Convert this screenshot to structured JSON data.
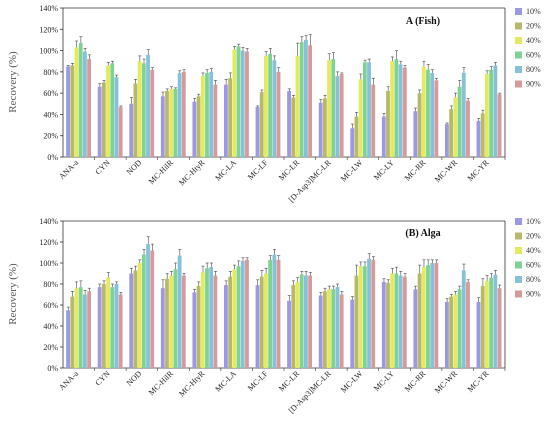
{
  "chart_data": [
    {
      "type": "bar",
      "title": "A (Fish)",
      "xlabel": "",
      "ylabel": "Recovery (%)",
      "ylim": [
        0,
        140
      ],
      "ytick_labels": [
        "0%",
        "20%",
        "40%",
        "60%",
        "80%",
        "100%",
        "120%",
        "140%"
      ],
      "grid": false,
      "legend_position": "right",
      "categories": [
        "ANA-a",
        "CYN",
        "NOD",
        "MC-HilR",
        "MC-HtyR",
        "MC-LA",
        "MC-LF",
        "MC-LR",
        "[D-Asp3]MC-LR",
        "MC-LW",
        "MC-LY",
        "MC-RR",
        "MC-WR",
        "MC-YR"
      ],
      "series": [
        {
          "name": "10%",
          "values": [
            85,
            66,
            50,
            57,
            52,
            68,
            47,
            62,
            51,
            27,
            38,
            43,
            31,
            34
          ]
        },
        {
          "name": "20%",
          "values": [
            86,
            70,
            69,
            62,
            57,
            74,
            61,
            56,
            55,
            38,
            62,
            60,
            45,
            41
          ]
        },
        {
          "name": "40%",
          "values": [
            103,
            86,
            90,
            64,
            76,
            101,
            95,
            95,
            91,
            73,
            90,
            85,
            56,
            78
          ]
        },
        {
          "name": "60%",
          "values": [
            107,
            88,
            88,
            64,
            79,
            104,
            97,
            108,
            92,
            89,
            92,
            82,
            66,
            82
          ]
        },
        {
          "name": "80%",
          "values": [
            99,
            75,
            96,
            79,
            80,
            100,
            91,
            110,
            76,
            89,
            87,
            79,
            79,
            86
          ]
        },
        {
          "name": "90%",
          "values": [
            92,
            47,
            82,
            80,
            68,
            99,
            80,
            105,
            78,
            68,
            84,
            72,
            53,
            59
          ]
        }
      ],
      "errors": [
        [
          1,
          3,
          6,
          4,
          3,
          5,
          1,
          2,
          3,
          4,
          3,
          3,
          1,
          2
        ],
        [
          2,
          2,
          4,
          2,
          2,
          5,
          2,
          2,
          3,
          4,
          4,
          3,
          3,
          3
        ],
        [
          6,
          3,
          5,
          2,
          3,
          3,
          4,
          12,
          6,
          5,
          4,
          5,
          4,
          3
        ],
        [
          6,
          2,
          4,
          1,
          3,
          2,
          5,
          5,
          6,
          2,
          8,
          5,
          6,
          3
        ],
        [
          3,
          2,
          5,
          2,
          3,
          3,
          4,
          4,
          4,
          3,
          3,
          3,
          5,
          3
        ],
        [
          4,
          1,
          2,
          2,
          4,
          3,
          4,
          10,
          1,
          6,
          2,
          2,
          2,
          1
        ]
      ]
    },
    {
      "type": "bar",
      "title": "(B) Alga",
      "xlabel": "",
      "ylabel": "Recovery (%)",
      "ylim": [
        0,
        140
      ],
      "ytick_labels": [
        "0%",
        "20%",
        "40%",
        "60%",
        "80%",
        "100%",
        "120%",
        "140%"
      ],
      "grid": false,
      "legend_position": "right",
      "categories": [
        "ANA-a",
        "CYN",
        "NOD",
        "MC-HilR",
        "MC-HtyR",
        "MC-LA",
        "MC-LF",
        "MC-LR",
        "[D-Asp3]MC-LR",
        "MC-LW",
        "MC-LY",
        "MC-RR",
        "MC-WR",
        "MC-YR"
      ],
      "series": [
        {
          "name": "10%",
          "values": [
            55,
            77,
            90,
            76,
            72,
            79,
            79,
            64,
            69,
            65,
            82,
            75,
            63,
            63
          ]
        },
        {
          "name": "20%",
          "values": [
            68,
            80,
            93,
            85,
            78,
            87,
            87,
            79,
            73,
            88,
            81,
            90,
            68,
            78
          ]
        },
        {
          "name": "40%",
          "values": [
            76,
            86,
            100,
            88,
            91,
            94,
            90,
            82,
            75,
            97,
            90,
            96,
            70,
            83
          ]
        },
        {
          "name": "60%",
          "values": [
            77,
            77,
            108,
            94,
            95,
            97,
            103,
            89,
            75,
            97,
            90,
            98,
            75,
            86
          ]
        },
        {
          "name": "80%",
          "values": [
            70,
            80,
            118,
            107,
            96,
            102,
            108,
            88,
            77,
            104,
            88,
            100,
            93,
            89
          ]
        },
        {
          "name": "90%",
          "values": [
            73,
            70,
            112,
            88,
            88,
            103,
            103,
            88,
            70,
            103,
            87,
            100,
            82,
            76
          ]
        }
      ],
      "errors": [
        [
          3,
          3,
          5,
          8,
          3,
          4,
          5,
          5,
          3,
          3,
          3,
          3,
          3,
          4
        ],
        [
          5,
          3,
          4,
          5,
          4,
          5,
          6,
          4,
          3,
          10,
          3,
          8,
          2,
          7
        ],
        [
          6,
          5,
          3,
          4,
          6,
          4,
          5,
          4,
          3,
          4,
          5,
          7,
          3,
          5
        ],
        [
          6,
          3,
          5,
          6,
          5,
          5,
          4,
          3,
          3,
          4,
          6,
          5,
          3,
          4
        ],
        [
          4,
          2,
          7,
          6,
          4,
          3,
          5,
          4,
          3,
          5,
          4,
          3,
          6,
          4
        ],
        [
          3,
          2,
          6,
          2,
          4,
          2,
          4,
          3,
          3,
          3,
          3,
          3,
          2,
          3
        ]
      ]
    }
  ],
  "series_colors": [
    "#9b98e4",
    "#b8b86a",
    "#e3ea5e",
    "#7ed394",
    "#86c1d9",
    "#d79a9a"
  ]
}
